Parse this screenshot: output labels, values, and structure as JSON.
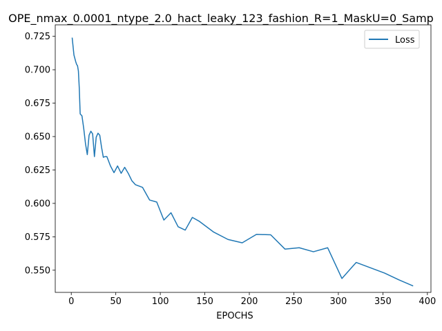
{
  "chart_data": {
    "type": "line",
    "title": "OPE_nmax_0.0001_ntype_2.0_hact_leaky_123_fashion_R=1_MaskU=0_Samp",
    "xlabel": "EPOCHS",
    "ylabel": "",
    "xlim": [
      -18,
      404
    ],
    "ylim": [
      0.5334,
      0.7336
    ],
    "xticks": [
      0,
      50,
      100,
      150,
      200,
      250,
      300,
      350,
      400
    ],
    "yticks": [
      0.55,
      0.575,
      0.6,
      0.625,
      0.65,
      0.675,
      0.7,
      0.725
    ],
    "ytick_labels": [
      "0.550",
      "0.575",
      "0.600",
      "0.625",
      "0.650",
      "0.675",
      "0.700",
      "0.725"
    ],
    "grid": false,
    "legend_position": "top-right",
    "series": [
      {
        "name": "Loss",
        "color": "#1f77b4",
        "x": [
          1,
          3,
          5,
          6,
          7,
          8,
          9,
          10,
          12,
          14,
          16,
          18,
          20,
          22,
          24,
          26,
          28,
          30,
          32,
          34,
          36,
          38,
          40,
          44,
          48,
          52,
          56,
          60,
          64,
          68,
          72,
          80,
          88,
          96,
          104,
          112,
          120,
          128,
          136,
          144,
          160,
          176,
          192,
          208,
          224,
          240,
          256,
          272,
          288,
          304,
          320,
          336,
          352,
          368,
          384
        ],
        "values": [
          0.724,
          0.711,
          0.706,
          0.704,
          0.703,
          0.699,
          0.686,
          0.667,
          0.6655,
          0.656,
          0.6445,
          0.6365,
          0.651,
          0.654,
          0.652,
          0.635,
          0.6495,
          0.6525,
          0.651,
          0.642,
          0.6345,
          0.635,
          0.635,
          0.628,
          0.623,
          0.628,
          0.6225,
          0.627,
          0.6225,
          0.617,
          0.614,
          0.612,
          0.6025,
          0.601,
          0.5875,
          0.593,
          0.5825,
          0.58,
          0.5895,
          0.5865,
          0.5785,
          0.573,
          0.5705,
          0.5768,
          0.5765,
          0.5658,
          0.5668,
          0.5638,
          0.5668,
          0.5438,
          0.5558,
          0.5518,
          0.5478,
          0.5428,
          0.5382
        ]
      }
    ]
  }
}
